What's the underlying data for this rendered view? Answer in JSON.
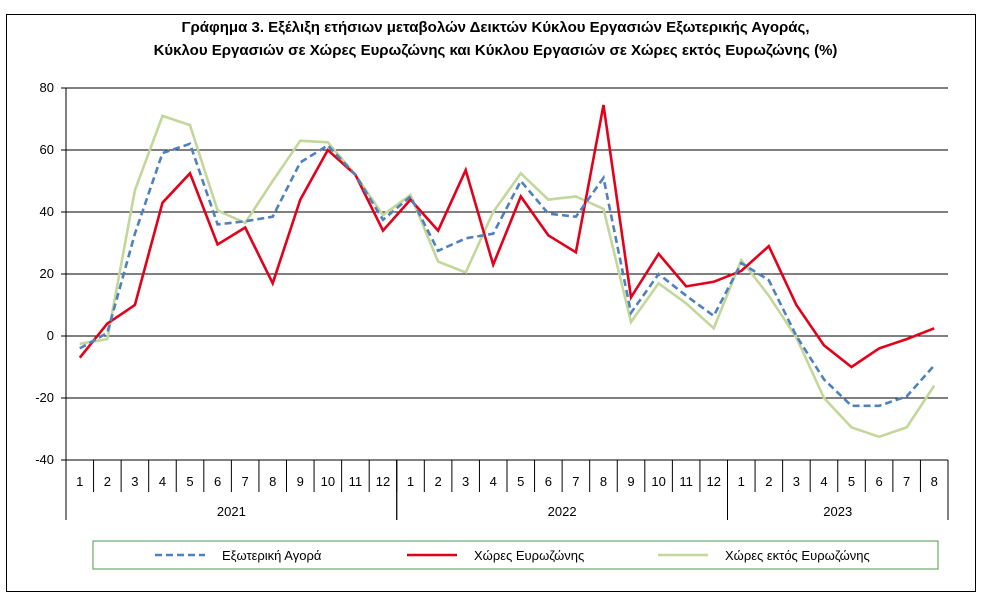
{
  "chart_data": {
    "type": "line",
    "title_line1": "Γράφημα 3. Εξέλιξη  ετήσιων μεταβολών Δεικτών Κύκλου Εργασιών Εξωτερικής Αγοράς,",
    "title_line2": "Κύκλου Εργασιών σε Χώρες Ευρωζώνης και Κύκλου Εργασιών σε Χώρες εκτός Ευρωζώνης (%)",
    "ylim": [
      -40,
      80
    ],
    "yticks": [
      -40,
      -20,
      0,
      20,
      40,
      60,
      80
    ],
    "categories": [
      "1",
      "2",
      "3",
      "4",
      "5",
      "6",
      "7",
      "8",
      "9",
      "10",
      "11",
      "12",
      "1",
      "2",
      "3",
      "4",
      "5",
      "6",
      "7",
      "8",
      "9",
      "10",
      "11",
      "12",
      "1",
      "2",
      "3",
      "4",
      "5",
      "6",
      "7",
      "8"
    ],
    "years": [
      {
        "label": "2021",
        "start": 0,
        "end": 12
      },
      {
        "label": "2022",
        "start": 12,
        "end": 24
      },
      {
        "label": "2023",
        "start": 24,
        "end": 32
      }
    ],
    "grid": true,
    "legend_position": "bottom",
    "series": [
      {
        "name": "Εξωτερική Αγορά",
        "color": "#4f81bd",
        "style": "dashed",
        "values": [
          -4,
          1,
          33,
          59,
          62,
          36,
          37,
          38.5,
          56,
          61.5,
          52,
          37.5,
          45,
          27.5,
          31.5,
          33,
          50,
          39.5,
          38.5,
          51,
          7.5,
          20,
          13,
          6.5,
          23.5,
          18,
          0,
          -14,
          -22.5,
          -22.5,
          -19.5,
          -9.5
        ]
      },
      {
        "name": "Χώρες Ευρωζώνης",
        "color": "#e3001b",
        "style": "solid",
        "values": [
          -7,
          4,
          10,
          43,
          52.5,
          29.5,
          35,
          17,
          44,
          60,
          52,
          34,
          44,
          34,
          53.5,
          23,
          45,
          32.5,
          27,
          74.5,
          12.5,
          26.5,
          16,
          17.5,
          21,
          29,
          10,
          -3,
          -10,
          -4,
          -1,
          2.5
        ]
      },
      {
        "name": "Χώρες εκτός Ευρωζώνης",
        "color": "#c4d79b",
        "style": "solid",
        "values": [
          -2.5,
          -1,
          47,
          71,
          68,
          40.5,
          36.5,
          50,
          63,
          62.5,
          52,
          39,
          45.5,
          24,
          20.5,
          40,
          52.5,
          44,
          45,
          41,
          4.5,
          17,
          10.5,
          2.5,
          24.5,
          13,
          -0.5,
          -20,
          -29.5,
          -32.5,
          -29.5,
          -16
        ]
      }
    ]
  }
}
